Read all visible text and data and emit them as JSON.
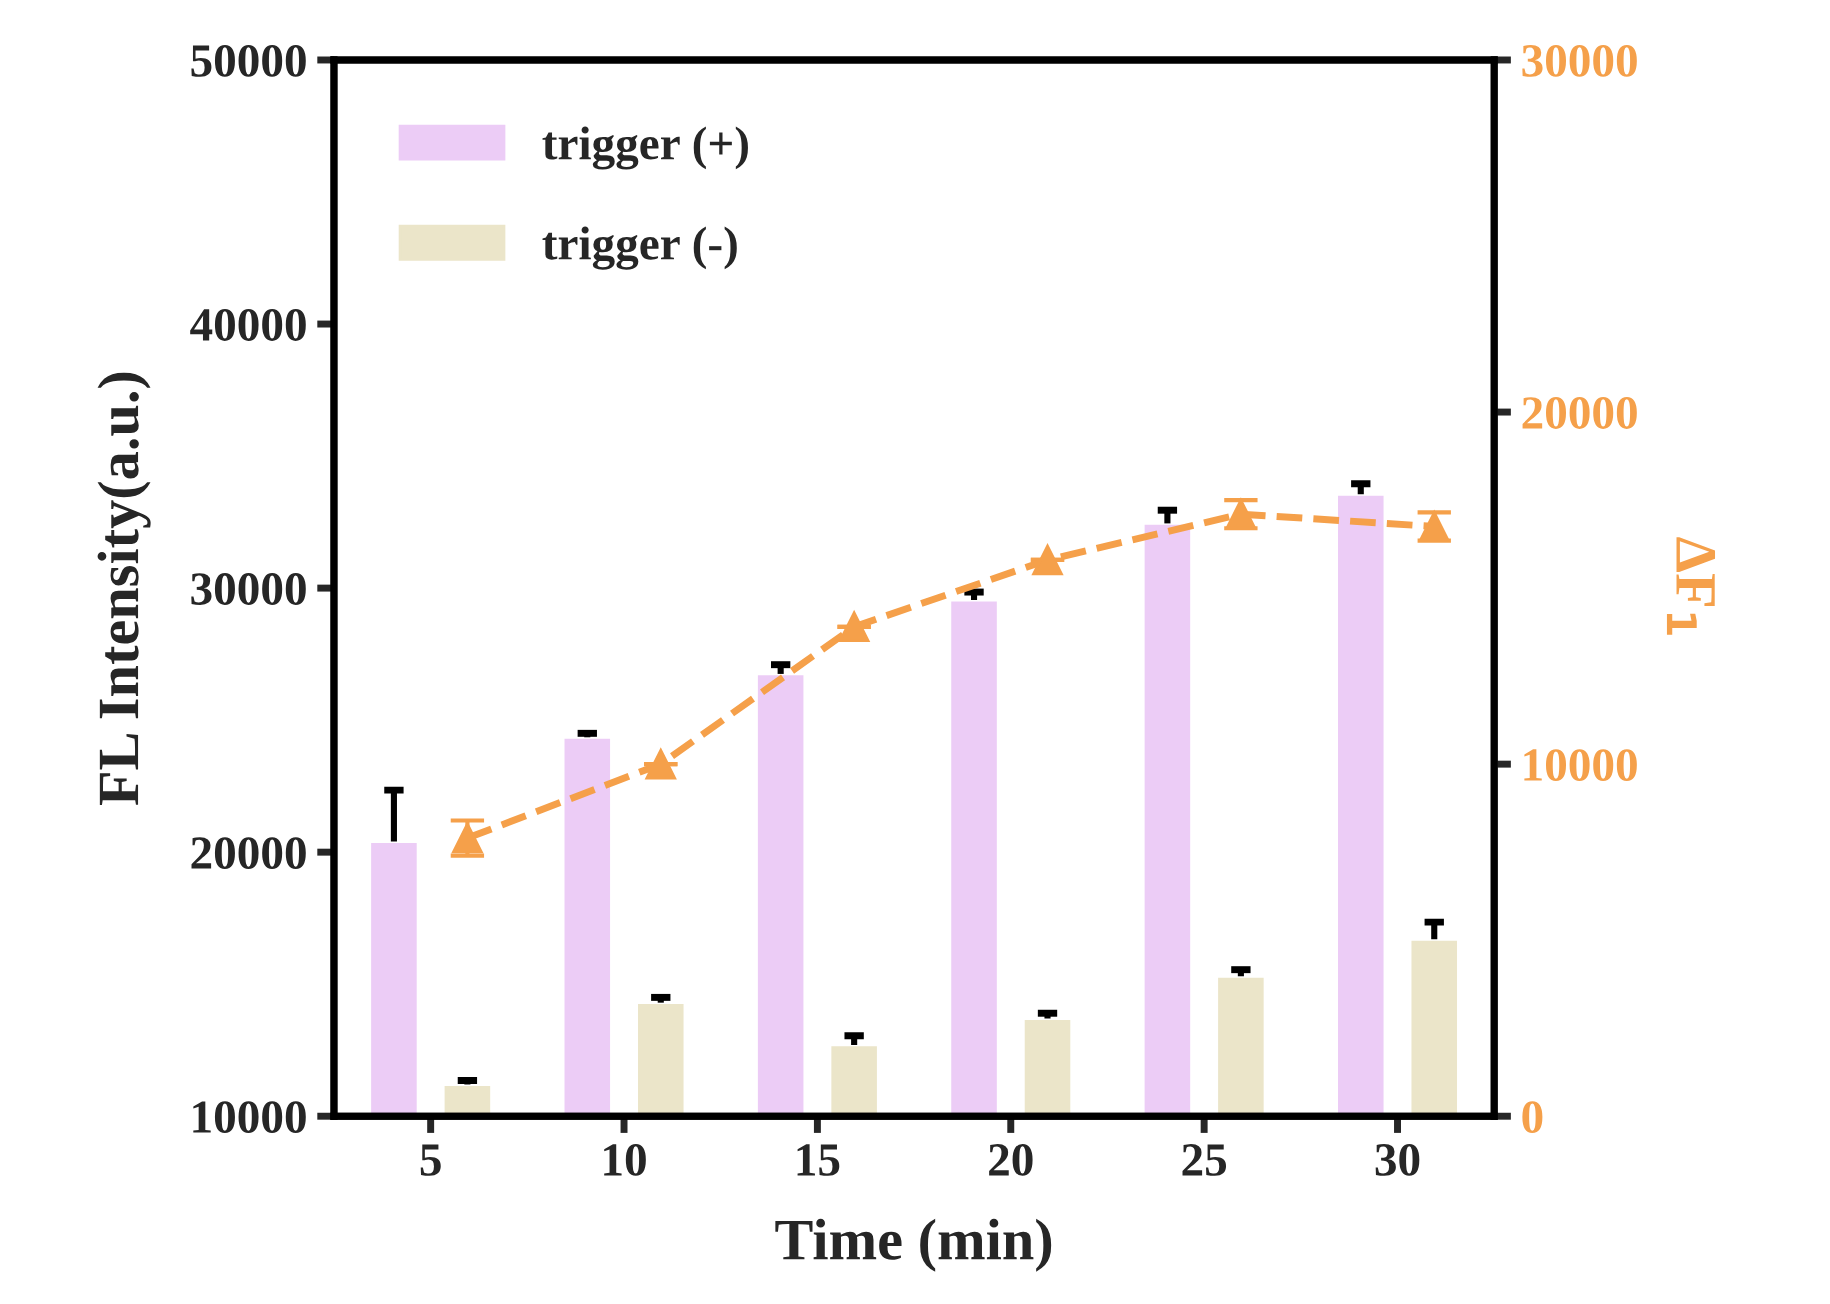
{
  "chart_data": {
    "type": "bar",
    "xlabel": "Time (min)",
    "ylabel": "FL Intensity(a.u.)",
    "y2label": "ΔF$_{1}$",
    "categories": [
      "5",
      "10",
      "15",
      "20",
      "25",
      "30"
    ],
    "ylim": [
      10000,
      50000
    ],
    "yticks": [
      10000,
      20000,
      30000,
      40000,
      50000
    ],
    "y2lim": [
      0,
      30000
    ],
    "y2ticks": [
      0,
      10000,
      20000,
      30000
    ],
    "legend": "top left",
    "grid": false,
    "series": [
      {
        "name": "trigger (+)",
        "color": "#ecccf6",
        "values": [
          20400,
          24350,
          26750,
          29550,
          32450,
          33550
        ],
        "errors": [
          [
            20400,
            22350
          ],
          [
            24350,
            24500
          ],
          [
            26750,
            27100
          ],
          [
            29550,
            29850
          ],
          [
            32450,
            32950
          ],
          [
            33550,
            33950
          ]
        ]
      },
      {
        "name": "trigger (-)",
        "color": "#ebe5c9",
        "values": [
          11200,
          14300,
          12700,
          13700,
          15300,
          16700
        ],
        "errors": [
          [
            11200,
            11350
          ],
          [
            14300,
            14500
          ],
          [
            12700,
            13050
          ],
          [
            13700,
            13900
          ],
          [
            15300,
            15550
          ],
          [
            16700,
            17350
          ]
        ]
      },
      {
        "type": "line",
        "axis": "y2",
        "color": "#f5a04a",
        "marker": "triangle",
        "line_style": "dashed",
        "values": [
          7900,
          10000,
          13900,
          15800,
          17100,
          16750
        ],
        "errors": [
          500,
          null,
          null,
          null,
          400,
          400
        ]
      }
    ]
  }
}
